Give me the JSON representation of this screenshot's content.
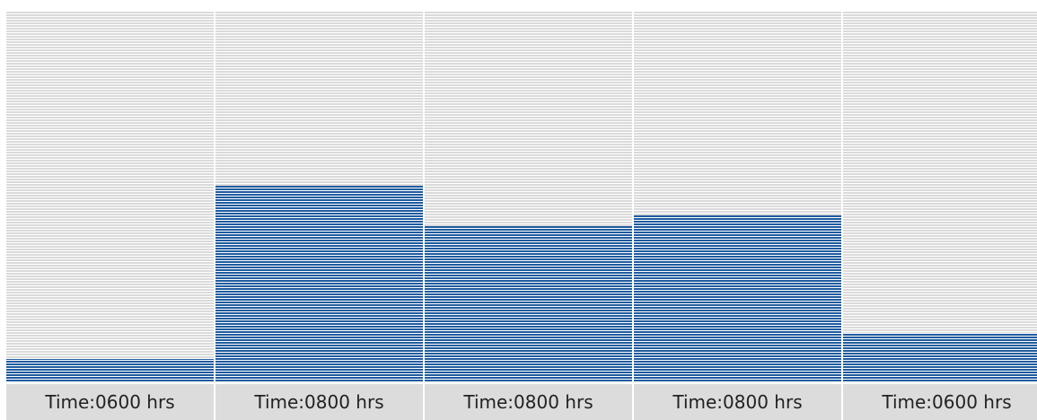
{
  "chart_data": {
    "type": "bar",
    "categories": [
      "Time:0600 hrs",
      "Time:0800 hrs",
      "Time:0800 hrs",
      "Time:0800 hrs",
      "Time:0600 hrs"
    ],
    "values": [
      0.06,
      0.53,
      0.42,
      0.45,
      0.13
    ],
    "ylim": [
      0,
      1
    ],
    "grid": false,
    "title": "",
    "xlabel": "",
    "ylabel": "",
    "colors": {
      "fill": "#1f5b9e",
      "track": "#dadada",
      "label_bg": "#dcdcdc",
      "label_text": "#222222"
    }
  }
}
